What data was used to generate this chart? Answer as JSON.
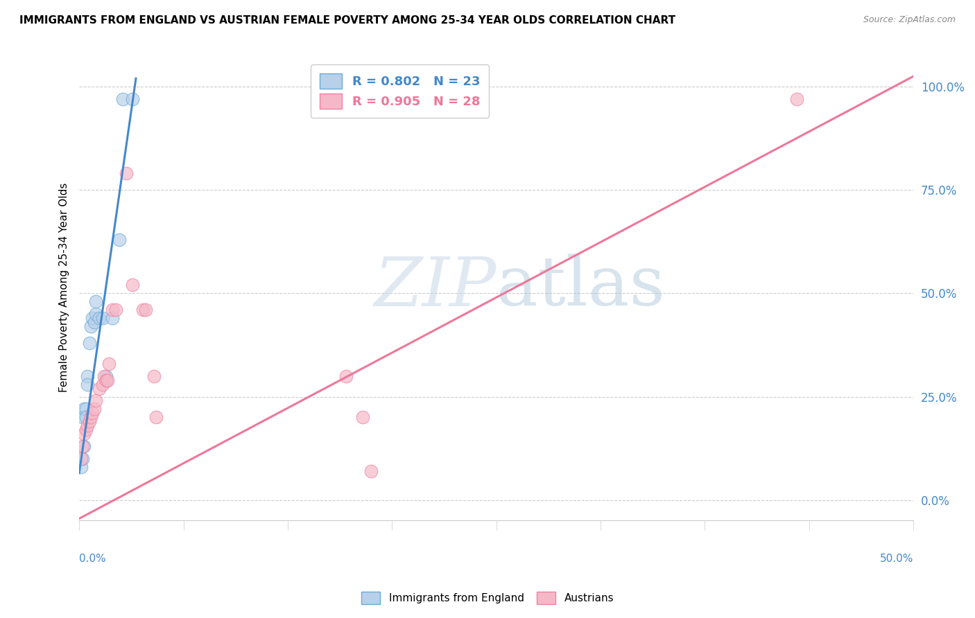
{
  "title": "IMMIGRANTS FROM ENGLAND VS AUSTRIAN FEMALE POVERTY AMONG 25-34 YEAR OLDS CORRELATION CHART",
  "source": "Source: ZipAtlas.com",
  "ylabel": "Female Poverty Among 25-34 Year Olds",
  "xlim": [
    0.0,
    0.5
  ],
  "ylim": [
    -0.05,
    1.08
  ],
  "yticks": [
    0.0,
    0.25,
    0.5,
    0.75,
    1.0
  ],
  "ytick_labels": [
    "0.0%",
    "25.0%",
    "50.0%",
    "75.0%",
    "100.0%"
  ],
  "legend_blue": {
    "R": 0.802,
    "N": 23,
    "label": "Immigrants from England"
  },
  "legend_pink": {
    "R": 0.905,
    "N": 28,
    "label": "Austrians"
  },
  "watermark_zip": "ZIP",
  "watermark_atlas": "atlas",
  "blue_color": "#b8d0ea",
  "pink_color": "#f5b8c8",
  "blue_edge_color": "#6aaad4",
  "pink_edge_color": "#f080a0",
  "blue_line_color": "#4488cc",
  "pink_line_color": "#ee7799",
  "blue_scatter": [
    [
      0.001,
      0.08
    ],
    [
      0.002,
      0.1
    ],
    [
      0.002,
      0.2
    ],
    [
      0.003,
      0.22
    ],
    [
      0.003,
      0.13
    ],
    [
      0.004,
      0.22
    ],
    [
      0.004,
      0.2
    ],
    [
      0.005,
      0.3
    ],
    [
      0.005,
      0.28
    ],
    [
      0.006,
      0.38
    ],
    [
      0.007,
      0.42
    ],
    [
      0.008,
      0.44
    ],
    [
      0.009,
      0.43
    ],
    [
      0.01,
      0.45
    ],
    [
      0.01,
      0.48
    ],
    [
      0.012,
      0.44
    ],
    [
      0.014,
      0.44
    ],
    [
      0.016,
      0.3
    ],
    [
      0.016,
      0.29
    ],
    [
      0.02,
      0.44
    ],
    [
      0.024,
      0.63
    ],
    [
      0.026,
      0.97
    ],
    [
      0.032,
      0.97
    ]
  ],
  "pink_scatter": [
    [
      0.001,
      0.1
    ],
    [
      0.002,
      0.13
    ],
    [
      0.003,
      0.16
    ],
    [
      0.004,
      0.17
    ],
    [
      0.005,
      0.18
    ],
    [
      0.006,
      0.19
    ],
    [
      0.007,
      0.2
    ],
    [
      0.008,
      0.21
    ],
    [
      0.009,
      0.22
    ],
    [
      0.01,
      0.24
    ],
    [
      0.012,
      0.27
    ],
    [
      0.014,
      0.28
    ],
    [
      0.015,
      0.3
    ],
    [
      0.016,
      0.29
    ],
    [
      0.017,
      0.29
    ],
    [
      0.018,
      0.33
    ],
    [
      0.02,
      0.46
    ],
    [
      0.022,
      0.46
    ],
    [
      0.028,
      0.79
    ],
    [
      0.032,
      0.52
    ],
    [
      0.038,
      0.46
    ],
    [
      0.04,
      0.46
    ],
    [
      0.045,
      0.3
    ],
    [
      0.046,
      0.2
    ],
    [
      0.16,
      0.3
    ],
    [
      0.17,
      0.2
    ],
    [
      0.175,
      0.07
    ],
    [
      0.43,
      0.97
    ]
  ],
  "blue_line": {
    "x0": 0.0,
    "y0": 0.065,
    "x1": 0.034,
    "y1": 1.02
  },
  "pink_line": {
    "x0": 0.0,
    "y0": -0.045,
    "x1": 0.5,
    "y1": 1.025
  }
}
